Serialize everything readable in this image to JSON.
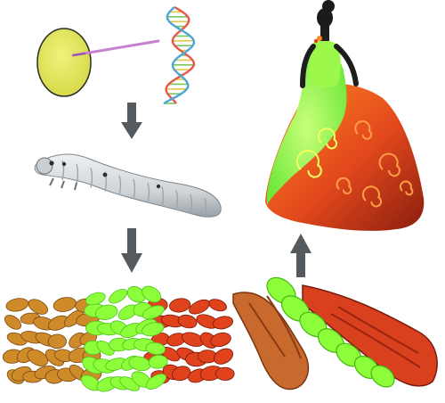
{
  "figure": {
    "panels": [
      {
        "id": "egg-injection",
        "depicts": "egg-with-microinjection-needle"
      },
      {
        "id": "dna",
        "depicts": "dna-double-helix-icon"
      },
      {
        "id": "silkworm",
        "depicts": "silkworm-larva"
      },
      {
        "id": "cocoons",
        "depicts": "silk-cocoon-pile"
      },
      {
        "id": "silk-skeins",
        "depicts": "fluorescent-silk-skeins"
      },
      {
        "id": "dress",
        "depicts": "fluorescent-silk-dress-on-mannequin"
      }
    ],
    "arrows": [
      {
        "id": "arrow-gene-to-worm",
        "direction": "down"
      },
      {
        "id": "arrow-worm-to-cocoons",
        "direction": "down"
      },
      {
        "id": "arrow-skeins-to-dress",
        "direction": "up"
      }
    ],
    "colors": {
      "egg_fill": "#e6e85a",
      "needle": "#c77fd0",
      "dna_strand_a": "#e8584a",
      "dna_strand_b": "#4aa7d8",
      "arrow": "#555a5e",
      "fluorescent_green": "#8cff3a",
      "fluorescent_red": "#e0421c",
      "cocoon_orange": "#cf8a2a",
      "worm_body": "#d9dde0"
    }
  }
}
